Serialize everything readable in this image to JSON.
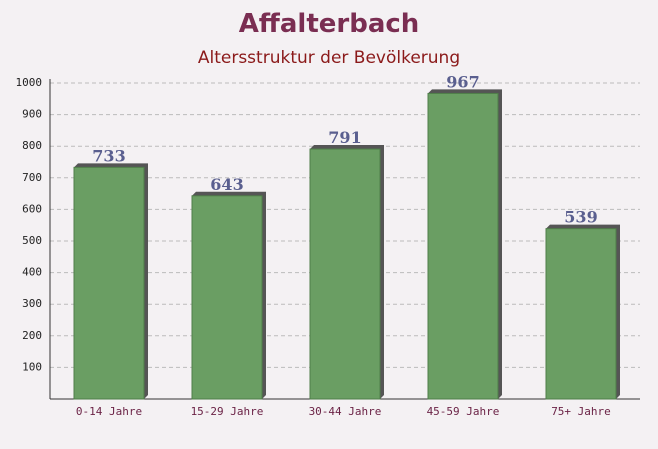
{
  "chart_data": {
    "type": "bar",
    "title": "Affalterbach",
    "subtitle": "Altersstruktur der Bevölkerung",
    "categories": [
      "0-14 Jahre",
      "15-29 Jahre",
      "30-44 Jahre",
      "45-59 Jahre",
      "75+ Jahre"
    ],
    "values": [
      733,
      643,
      791,
      967,
      539
    ],
    "color": "#6a9e63",
    "ylim": [
      0,
      1000
    ],
    "yticks": [
      100,
      200,
      300,
      400,
      500,
      600,
      700,
      800,
      900,
      1000
    ],
    "grid": true
  }
}
